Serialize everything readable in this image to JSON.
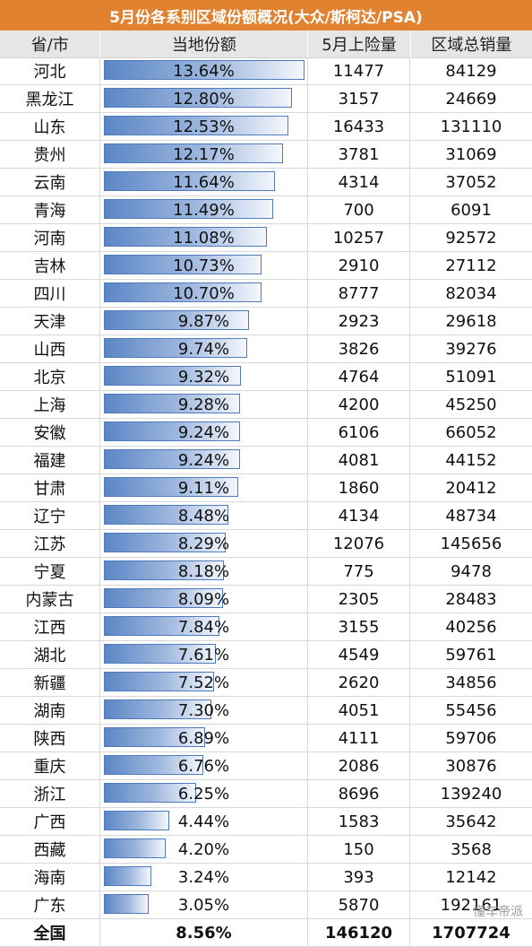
{
  "title": "5月份各系别区域份额概况(大众/斯柯达/PSA)",
  "headers": [
    "省/市",
    "当地份额",
    "5月上险量",
    "区域总销量"
  ],
  "chart_data": {
    "type": "table",
    "title": "5月份各系别区域份额概况(大众/斯柯达/PSA)",
    "columns": [
      "省/市",
      "当地份额",
      "5月上险量",
      "区域总销量"
    ],
    "rows": [
      {
        "name": "河北",
        "share": "13.64%",
        "share_value": 13.64,
        "insured": "11477",
        "total": "84129"
      },
      {
        "name": "黑龙江",
        "share": "12.80%",
        "share_value": 12.8,
        "insured": "3157",
        "total": "24669"
      },
      {
        "name": "山东",
        "share": "12.53%",
        "share_value": 12.53,
        "insured": "16433",
        "total": "131110"
      },
      {
        "name": "贵州",
        "share": "12.17%",
        "share_value": 12.17,
        "insured": "3781",
        "total": "31069"
      },
      {
        "name": "云南",
        "share": "11.64%",
        "share_value": 11.64,
        "insured": "4314",
        "total": "37052"
      },
      {
        "name": "青海",
        "share": "11.49%",
        "share_value": 11.49,
        "insured": "700",
        "total": "6091"
      },
      {
        "name": "河南",
        "share": "11.08%",
        "share_value": 11.08,
        "insured": "10257",
        "total": "92572"
      },
      {
        "name": "吉林",
        "share": "10.73%",
        "share_value": 10.73,
        "insured": "2910",
        "total": "27112"
      },
      {
        "name": "四川",
        "share": "10.70%",
        "share_value": 10.7,
        "insured": "8777",
        "total": "82034"
      },
      {
        "name": "天津",
        "share": "9.87%",
        "share_value": 9.87,
        "insured": "2923",
        "total": "29618"
      },
      {
        "name": "山西",
        "share": "9.74%",
        "share_value": 9.74,
        "insured": "3826",
        "total": "39276"
      },
      {
        "name": "北京",
        "share": "9.32%",
        "share_value": 9.32,
        "insured": "4764",
        "total": "51091"
      },
      {
        "name": "上海",
        "share": "9.28%",
        "share_value": 9.28,
        "insured": "4200",
        "total": "45250"
      },
      {
        "name": "安徽",
        "share": "9.24%",
        "share_value": 9.24,
        "insured": "6106",
        "total": "66052"
      },
      {
        "name": "福建",
        "share": "9.24%",
        "share_value": 9.24,
        "insured": "4081",
        "total": "44152"
      },
      {
        "name": "甘肃",
        "share": "9.11%",
        "share_value": 9.11,
        "insured": "1860",
        "total": "20412"
      },
      {
        "name": "辽宁",
        "share": "8.48%",
        "share_value": 8.48,
        "insured": "4134",
        "total": "48734"
      },
      {
        "name": "江苏",
        "share": "8.29%",
        "share_value": 8.29,
        "insured": "12076",
        "total": "145656"
      },
      {
        "name": "宁夏",
        "share": "8.18%",
        "share_value": 8.18,
        "insured": "775",
        "total": "9478"
      },
      {
        "name": "内蒙古",
        "share": "8.09%",
        "share_value": 8.09,
        "insured": "2305",
        "total": "28483"
      },
      {
        "name": "江西",
        "share": "7.84%",
        "share_value": 7.84,
        "insured": "3155",
        "total": "40256"
      },
      {
        "name": "湖北",
        "share": "7.61%",
        "share_value": 7.61,
        "insured": "4549",
        "total": "59761"
      },
      {
        "name": "新疆",
        "share": "7.52%",
        "share_value": 7.52,
        "insured": "2620",
        "total": "34856"
      },
      {
        "name": "湖南",
        "share": "7.30%",
        "share_value": 7.3,
        "insured": "4051",
        "total": "55456"
      },
      {
        "name": "陕西",
        "share": "6.89%",
        "share_value": 6.89,
        "insured": "4111",
        "total": "59706"
      },
      {
        "name": "重庆",
        "share": "6.76%",
        "share_value": 6.76,
        "insured": "2086",
        "total": "30876"
      },
      {
        "name": "浙江",
        "share": "6.25%",
        "share_value": 6.25,
        "insured": "8696",
        "total": "139240"
      },
      {
        "name": "广西",
        "share": "4.44%",
        "share_value": 4.44,
        "insured": "1583",
        "total": "35642"
      },
      {
        "name": "西藏",
        "share": "4.20%",
        "share_value": 4.2,
        "insured": "150",
        "total": "3568"
      },
      {
        "name": "海南",
        "share": "3.24%",
        "share_value": 3.24,
        "insured": "393",
        "total": "12142"
      },
      {
        "name": "广东",
        "share": "3.05%",
        "share_value": 3.05,
        "insured": "5870",
        "total": "192161"
      }
    ],
    "total_row": {
      "name": "全国",
      "share": "8.56%",
      "insured": "146120",
      "total": "1707724"
    },
    "bar_color_start": "#5b86c5",
    "bar_color_end": "#f4f7fc",
    "bar_border": "#4f7bbd"
  },
  "colors": {
    "title_bg": "#e0822f",
    "header_bg": "#e6e6e6"
  },
  "watermark": "懂车帝派"
}
